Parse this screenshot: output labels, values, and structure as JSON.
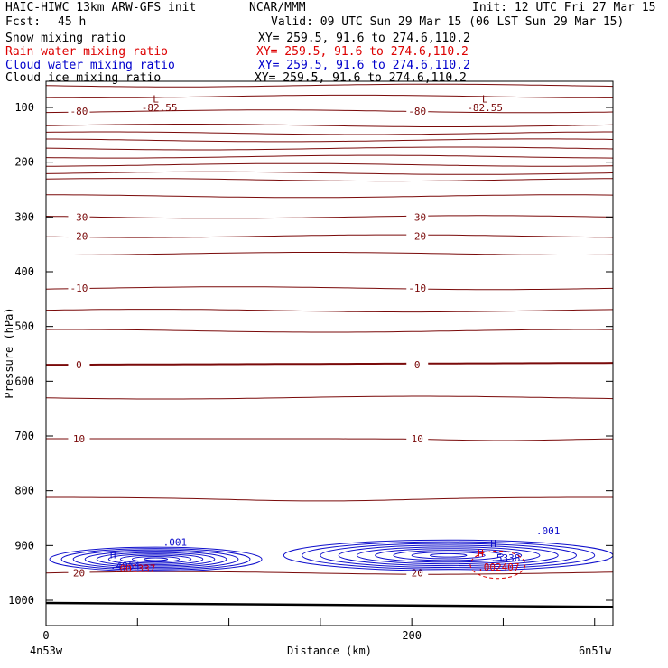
{
  "header": {
    "model": "HAIC-HIWC 13km ARW-GFS init",
    "center": "NCAR/MMM",
    "init": "Init: 12 UTC Fri 27 Mar 15",
    "fcst_label": "Fcst:",
    "fcst_value": "45 h",
    "valid": "Valid: 09 UTC Sun 29 Mar 15 (06 LST Sun 29 Mar 15)"
  },
  "fields": [
    {
      "label": "Snow mixing ratio",
      "xy": "XY= 259.5, 91.6 to 274.6,110.2",
      "color": "#000000"
    },
    {
      "label": "Rain water mixing ratio",
      "xy": "XY= 259.5, 91.6 to 274.6,110.2",
      "color": "#dd0000"
    },
    {
      "label": "Cloud water mixing ratio",
      "xy": "XY= 259.5, 91.6 to 274.6,110.2",
      "color": "#0000cc"
    },
    {
      "label": "Cloud ice mixing ratio",
      "xy": "XY= 259.5, 91.6 to 274.6,110.2",
      "color": "#000000"
    }
  ],
  "colors": {
    "temperature": "#7a0a0a",
    "cloud_water": "#1010cc",
    "rain_water": "#dd0000",
    "terrain": "#000000"
  },
  "chart_data": {
    "type": "line",
    "xlabel": "Distance (km)",
    "ylabel": "Pressure (hPa)",
    "xlim": [
      0,
      310
    ],
    "ylim": [
      1050,
      40
    ],
    "x_ticks": [
      0,
      200
    ],
    "y_ticks": [
      100,
      200,
      300,
      400,
      500,
      600,
      700,
      800,
      900,
      1000
    ],
    "x_endpoint_labels": {
      "left": "4n53w",
      "right": "6n51w"
    },
    "isotherms": [
      {
        "p": 60,
        "label": ""
      },
      {
        "p": 80,
        "label": ""
      },
      {
        "p": 107,
        "label": "-80"
      },
      {
        "p": 133,
        "label": ""
      },
      {
        "p": 147,
        "label": ""
      },
      {
        "p": 160,
        "label": ""
      },
      {
        "p": 175,
        "label": ""
      },
      {
        "p": 190,
        "label": ""
      },
      {
        "p": 205,
        "label": ""
      },
      {
        "p": 220,
        "label": ""
      },
      {
        "p": 232,
        "label": ""
      },
      {
        "p": 262,
        "label": ""
      },
      {
        "p": 300,
        "label": "-30"
      },
      {
        "p": 335,
        "label": "-20"
      },
      {
        "p": 367,
        "label": ""
      },
      {
        "p": 430,
        "label": "-10"
      },
      {
        "p": 471,
        "label": ""
      },
      {
        "p": 508,
        "label": ""
      },
      {
        "p": 570,
        "label": "0"
      },
      {
        "p": 630,
        "label": ""
      },
      {
        "p": 705,
        "label": "10"
      },
      {
        "p": 812,
        "label": ""
      },
      {
        "p": 950,
        "label": "20"
      }
    ],
    "minima_labels": [
      {
        "x": 60,
        "p": 84,
        "text": "L"
      },
      {
        "x": 62,
        "p": 100,
        "text": "-82.55"
      },
      {
        "x": 240,
        "p": 84,
        "text": "L"
      },
      {
        "x": 240,
        "p": 100,
        "text": "-82.55"
      }
    ],
    "cloud_water": {
      "contour_label": ".001",
      "left_max": {
        "x": 35,
        "p": 923,
        "value": ".4964",
        "marker": "H"
      },
      "right_max": {
        "x": 243,
        "p": 903,
        "value": ".5338",
        "marker": "H"
      }
    },
    "rain_water": {
      "left_value": ".001337",
      "right_value": ".002407",
      "right_marker": "H"
    },
    "terrain_p_left": 1005,
    "terrain_p_right": 1012
  }
}
